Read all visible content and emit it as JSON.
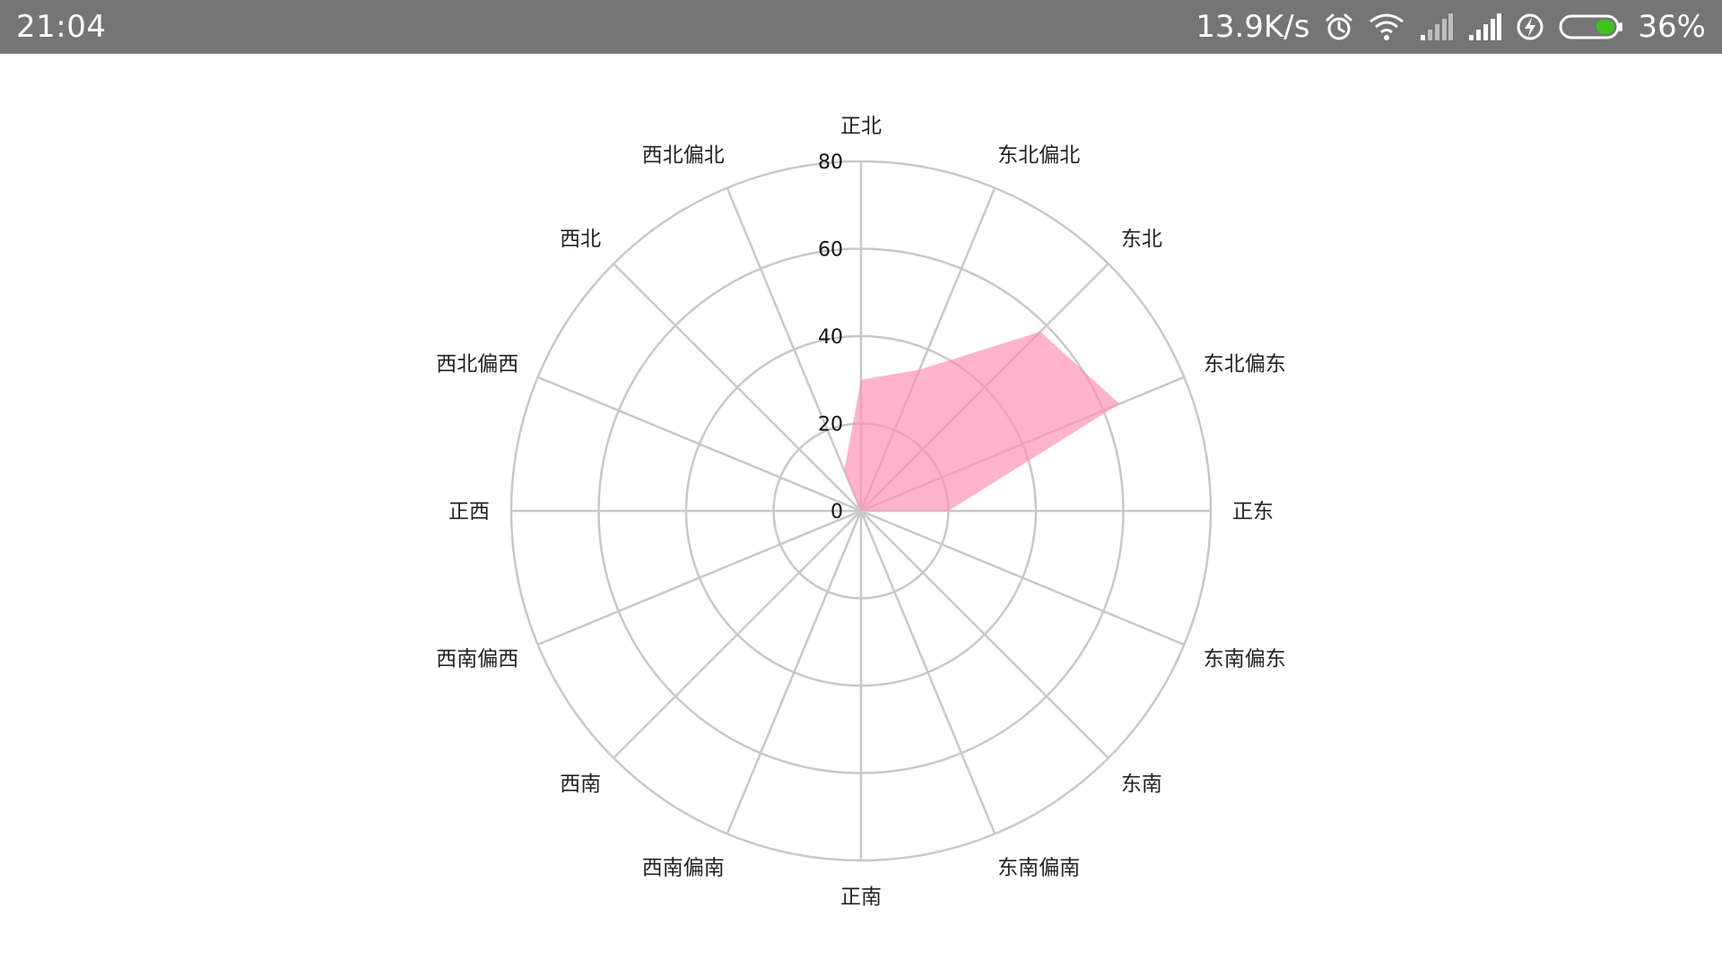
{
  "status_bar": {
    "time": "21:04",
    "net_speed": "13.9K/s",
    "battery_percent": "36%",
    "battery_level": 0.36,
    "icons": [
      "alarm-icon",
      "wifi-icon",
      "signal-weak-icon",
      "signal-full-icon",
      "charging-icon",
      "battery-icon"
    ],
    "background_color": "#757575",
    "battery_fill_color": "#3cc51f"
  },
  "chart_data": {
    "type": "radar",
    "categories": [
      "正北",
      "东北偏北",
      "东北",
      "东北偏东",
      "正东",
      "东南偏东",
      "东南",
      "东南偏南",
      "正南",
      "西南偏南",
      "西南",
      "西南偏西",
      "正西",
      "西北偏西",
      "西北",
      "西北偏北"
    ],
    "rticks": [
      0,
      20,
      40,
      60,
      80
    ],
    "rlim": [
      0,
      80
    ],
    "grid": true,
    "series": [
      {
        "values": [
          30,
          35,
          58,
          64,
          20,
          0,
          0,
          0,
          0,
          0,
          0,
          0,
          0,
          0,
          0,
          10
        ],
        "color": "#ff8fb4"
      }
    ]
  }
}
